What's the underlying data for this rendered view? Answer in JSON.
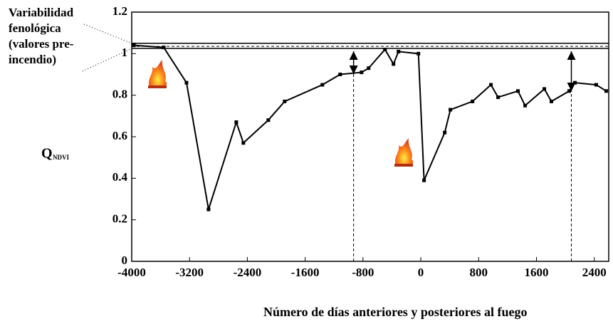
{
  "chart_data": {
    "type": "line",
    "xlabel": "Número de días anteriores y posteriores al fuego",
    "ylabel": "Q",
    "ylabel_sub": "NDVI",
    "annotation": [
      "Variabilidad",
      "fenológica",
      "(valores pre-",
      "incendio)"
    ],
    "xlim": [
      -4000,
      2600
    ],
    "ylim": [
      0,
      1.2
    ],
    "xticks": [
      -4000,
      -3200,
      -2400,
      -1600,
      -800,
      0,
      800,
      1600,
      2400
    ],
    "yticks": [
      0,
      0.2,
      0.4,
      0.6,
      0.8,
      1,
      1.2
    ],
    "hlines": [
      1.05,
      1.025
    ],
    "hline_dashed": [
      1.035
    ],
    "vlines": [
      -930,
      2083
    ],
    "series": [
      {
        "color": "#000000",
        "x": [
          -3970,
          -3557,
          -3242,
          -2937,
          -2553,
          -2455,
          -2110,
          -1884,
          -1362,
          -1116,
          -820,
          -722,
          -496,
          -378,
          -309,
          -33,
          45,
          331,
          409,
          715,
          970,
          1069,
          1344,
          1443,
          1709,
          1807,
          2053,
          2132,
          2427,
          2565
        ],
        "values": [
          1.04,
          1.03,
          0.86,
          0.25,
          0.67,
          0.57,
          0.68,
          0.77,
          0.85,
          0.9,
          0.91,
          0.93,
          1.02,
          0.95,
          1.01,
          1.0,
          0.39,
          0.62,
          0.73,
          0.77,
          0.85,
          0.79,
          0.82,
          0.75,
          0.83,
          0.77,
          0.82,
          0.86,
          0.85,
          0.82
        ]
      }
    ]
  }
}
